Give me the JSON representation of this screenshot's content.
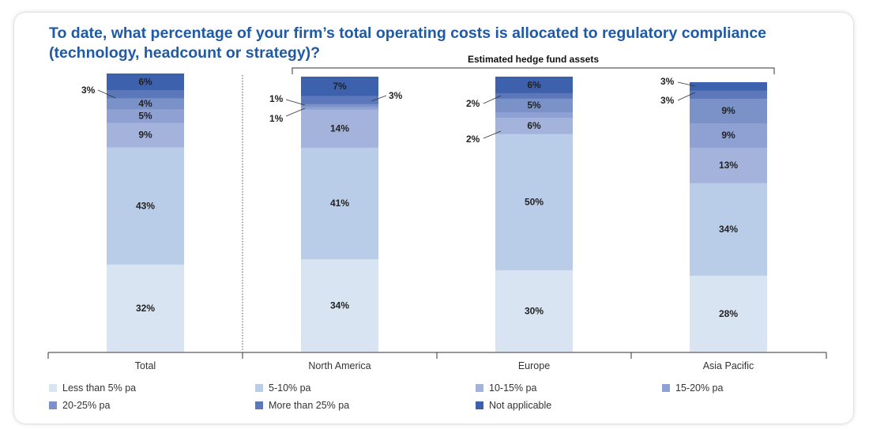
{
  "chart_data": {
    "type": "bar",
    "stacked": true,
    "title": "To date, what percentage of your firm’s total operating costs is allocated to regulatory compliance (technology, headcount or strategy)?",
    "group_label": "Estimated hedge fund assets",
    "categories": [
      "Total",
      "North America",
      "Europe",
      "Asia Pacific"
    ],
    "series": [
      {
        "name": "Less than 5% pa",
        "color": "#d9e4f2",
        "values": [
          32,
          34,
          30,
          28
        ]
      },
      {
        "name": "5-10% pa",
        "color": "#b9cce8",
        "values": [
          43,
          41,
          50,
          34
        ]
      },
      {
        "name": "10-15% pa",
        "color": "#a3b3db",
        "values": [
          9,
          14,
          6,
          13
        ]
      },
      {
        "name": "15-20% pa",
        "color": "#8fa0d3",
        "values": [
          5,
          1,
          2,
          9
        ]
      },
      {
        "name": "20-25% pa",
        "color": "#7a92c8",
        "values": [
          4,
          1,
          5,
          9
        ]
      },
      {
        "name": "More than 25% pa",
        "color": "#5c78ba",
        "values": [
          3,
          3,
          2,
          3
        ]
      },
      {
        "name": "Not applicable",
        "color": "#3d61ad",
        "values": [
          6,
          7,
          6,
          3
        ]
      }
    ],
    "data_labels": [
      [
        "32%",
        "43%",
        "9%",
        "5%",
        "4%",
        "3%",
        "6%"
      ],
      [
        "34%",
        "41%",
        "14%",
        "1%",
        "1%",
        "3%",
        "7%"
      ],
      [
        "30%",
        "50%",
        "6%",
        "2%",
        "5%",
        "2%",
        "6%"
      ],
      [
        "28%",
        "34%",
        "13%",
        "9%",
        "9%",
        "3%",
        "3%"
      ]
    ],
    "ylim": [
      0,
      100
    ],
    "legend_position": "bottom",
    "grid": false
  }
}
